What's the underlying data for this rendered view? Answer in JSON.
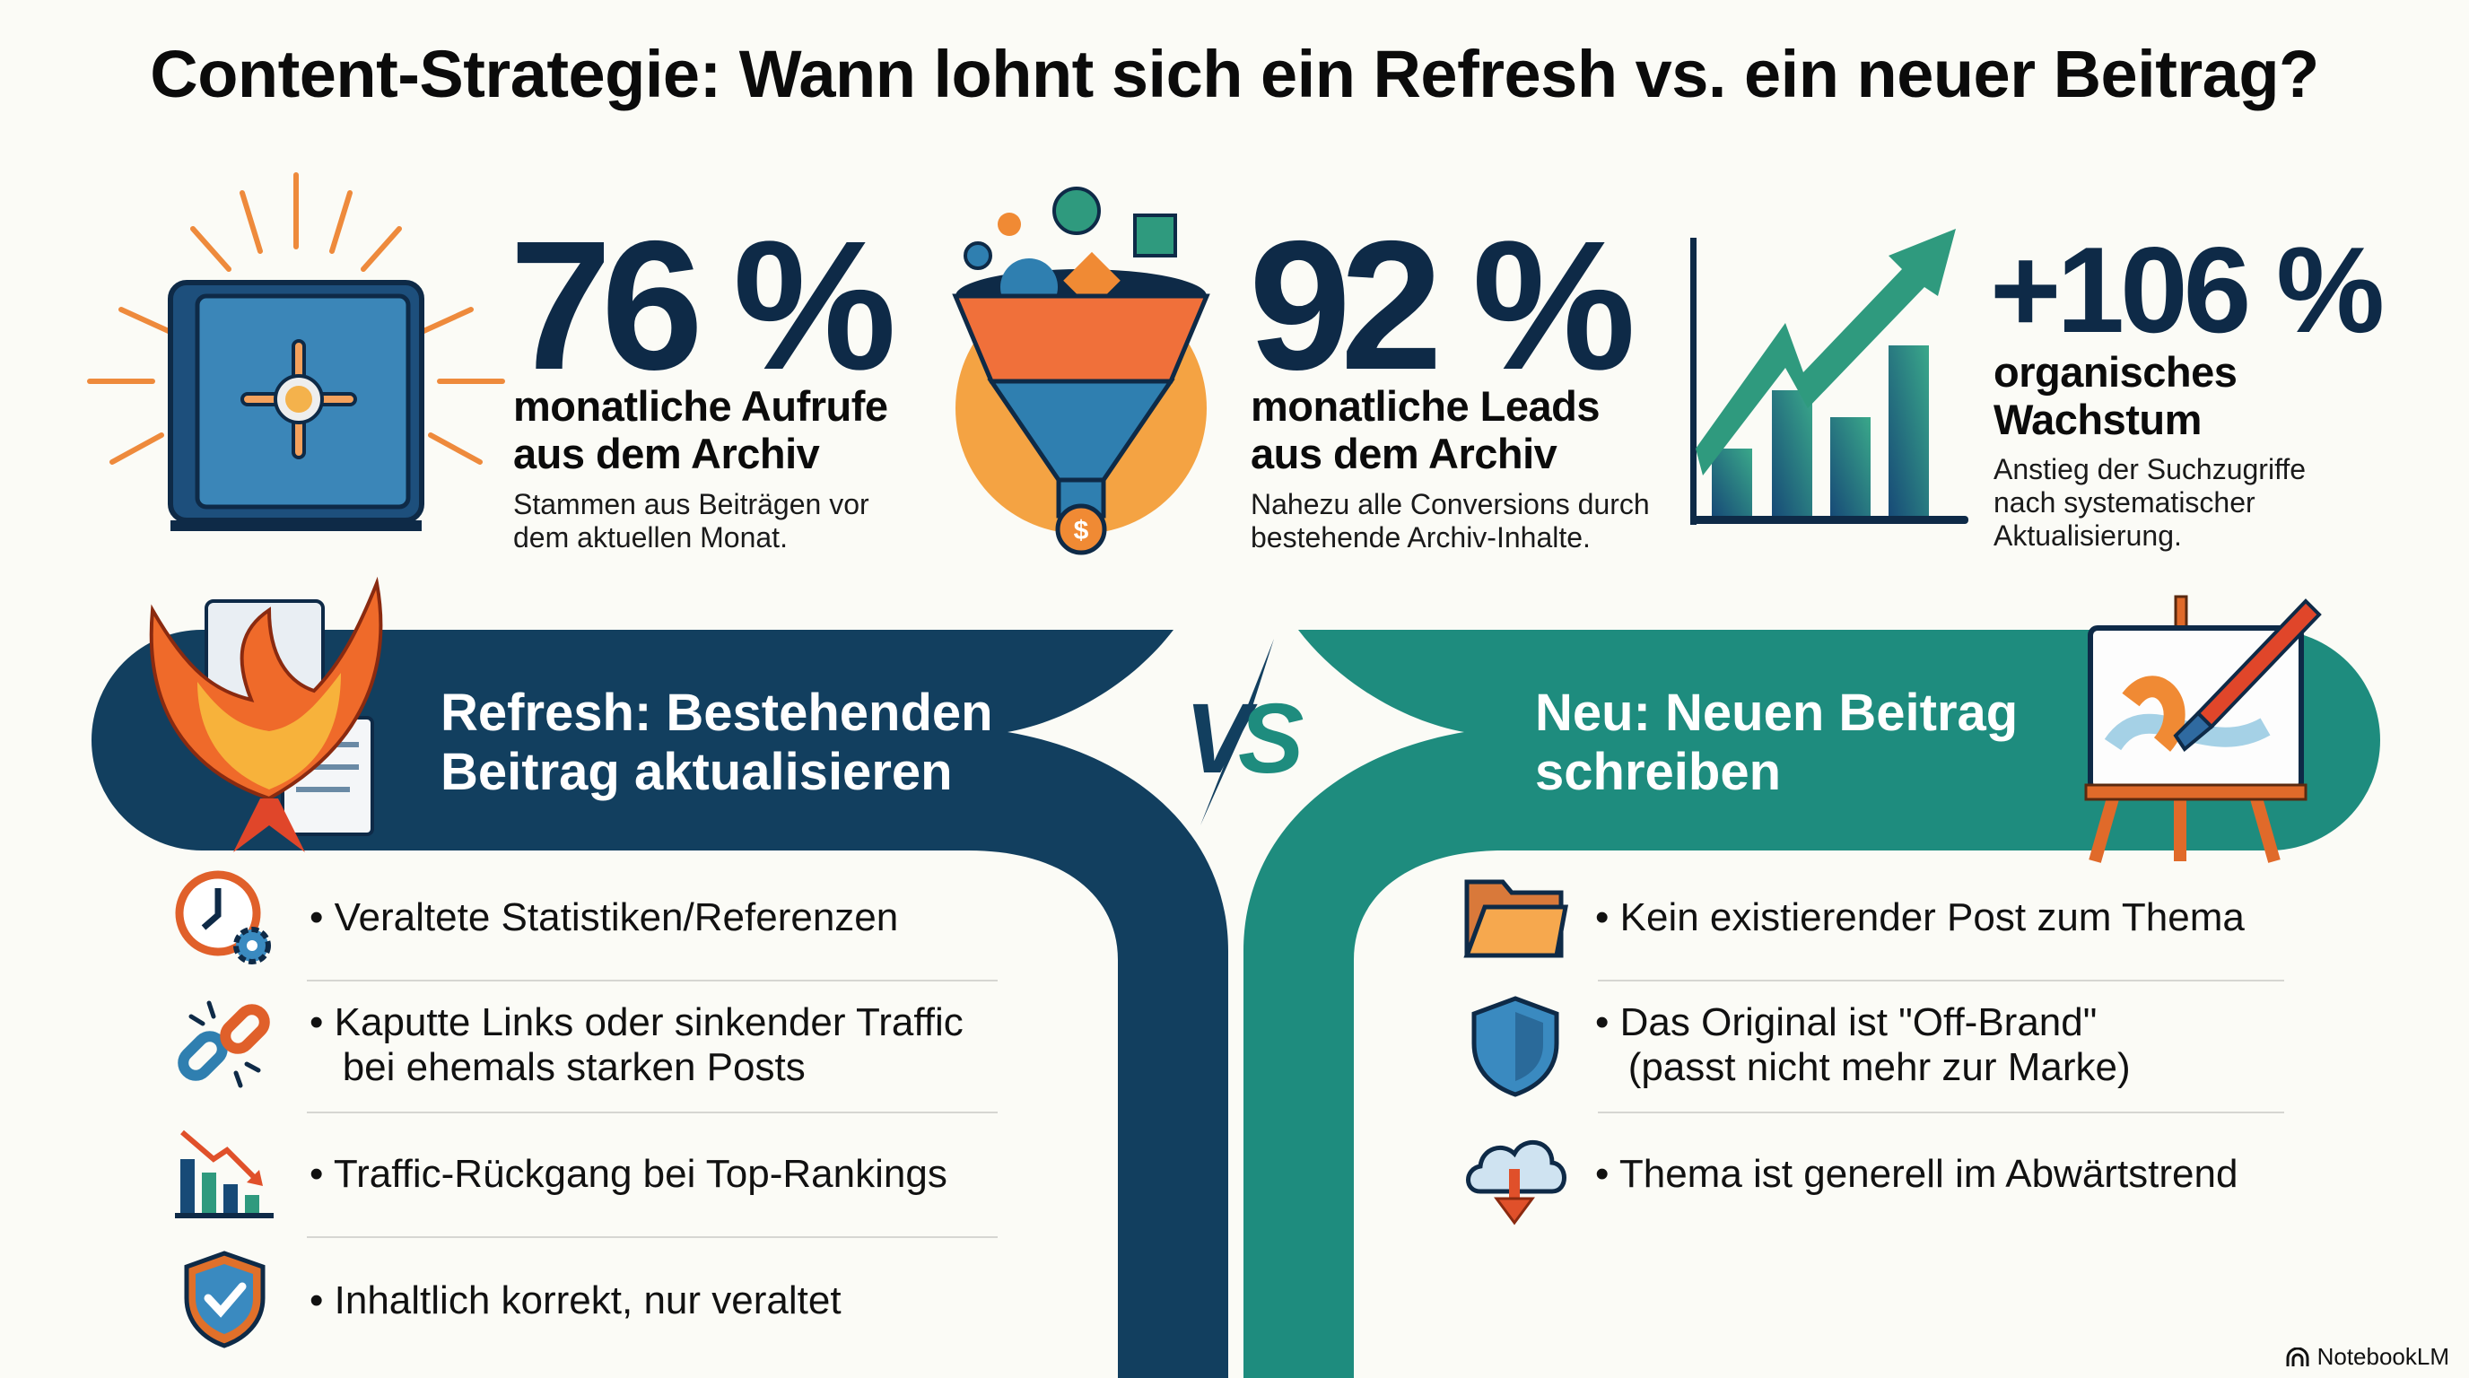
{
  "title": "Content-Strategie: Wann lohnt sich ein Refresh vs. ein neuer Beitrag?",
  "stats": [
    {
      "icon": "safe-icon",
      "value": "76 %",
      "label": [
        "monatliche Aufrufe",
        "aus dem Archiv"
      ],
      "description": [
        "Stammen aus Beiträgen vor",
        "dem aktuellen Monat."
      ]
    },
    {
      "icon": "funnel-icon",
      "value": "92 %",
      "label": [
        "monatliche Leads",
        "aus dem Archiv"
      ],
      "description": [
        "Nahezu alle Conversions durch",
        "bestehende Archiv-Inhalte."
      ]
    },
    {
      "icon": "growth-chart-icon",
      "value": "+106 %",
      "label": [
        "organisches",
        "Wachstum"
      ],
      "description": [
        "Anstieg der Suchzugriffe",
        "nach systematischer",
        "Aktualisierung."
      ]
    }
  ],
  "vs": {
    "v": "V",
    "s": "S"
  },
  "refresh": {
    "icon": "phoenix-icon",
    "title": [
      "Refresh: Bestehenden",
      "Beitrag aktualisieren"
    ],
    "color": "#123f5f",
    "items": [
      {
        "icon": "clock-gear-icon",
        "lines": [
          "Veraltete Statistiken/Referenzen"
        ]
      },
      {
        "icon": "broken-link-icon",
        "lines": [
          "Kaputte Links oder sinkender Traffic",
          "bei ehemals starken Posts"
        ]
      },
      {
        "icon": "declining-bar-chart-icon",
        "lines": [
          "Traffic-Rückgang bei Top-Rankings"
        ]
      },
      {
        "icon": "shield-check-icon",
        "lines": [
          "Inhaltlich korrekt, nur veraltet"
        ]
      }
    ]
  },
  "new": {
    "icon": "easel-paintbrush-icon",
    "title": [
      "Neu: Neuen Beitrag",
      "schreiben"
    ],
    "color": "#1e8c7e",
    "items": [
      {
        "icon": "folder-icon",
        "lines": [
          "Kein existierender Post zum Thema"
        ]
      },
      {
        "icon": "shield-icon",
        "lines": [
          "Das Original ist \"Off-Brand\"",
          "(passt nicht mehr zur Marke)"
        ]
      },
      {
        "icon": "cloud-download-icon",
        "lines": [
          "Thema ist generell im Abwärtstrend"
        ]
      }
    ]
  },
  "watermark": "NotebookLM",
  "colors": {
    "navy": "#123f5f",
    "teal": "#1e8c7e",
    "orange": "#f08a34",
    "number": "#0e2a47"
  }
}
